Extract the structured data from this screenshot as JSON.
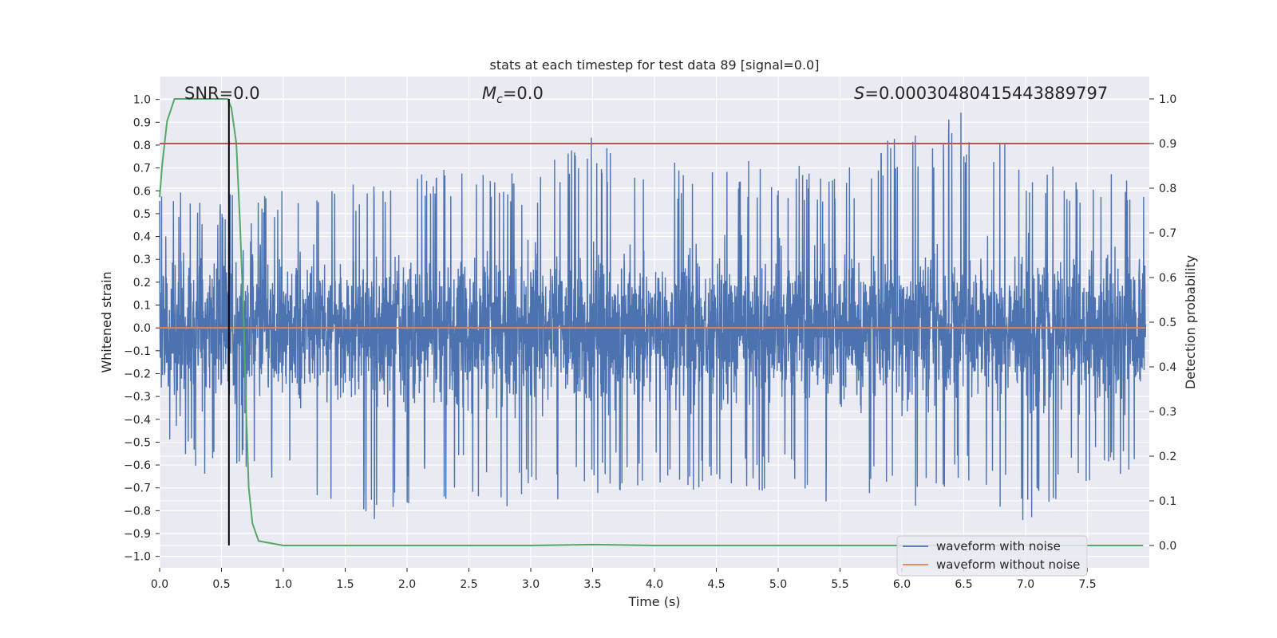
{
  "chart_data": {
    "type": "line",
    "title": "stats at each timestep for test data 89 [signal=0.0]",
    "xlabel": "Time (s)",
    "ylabel": "Whitened strain",
    "y2label": "Detection probability",
    "xlim": [
      0.0,
      8.0
    ],
    "ylim": [
      -1.05,
      1.1
    ],
    "y2lim": [
      -0.05,
      1.05
    ],
    "xticks": [
      0.0,
      0.5,
      1.0,
      1.5,
      2.0,
      2.5,
      3.0,
      3.5,
      4.0,
      4.5,
      5.0,
      5.5,
      6.0,
      6.5,
      7.0,
      7.5
    ],
    "xtick_labels": [
      "0.0",
      "0.5",
      "1.0",
      "1.5",
      "2.0",
      "2.5",
      "3.0",
      "3.5",
      "4.0",
      "4.5",
      "5.0",
      "5.5",
      "6.0",
      "6.5",
      "7.0",
      "7.5"
    ],
    "yticks": [
      -1.0,
      -0.9,
      -0.8,
      -0.7,
      -0.6,
      -0.5,
      -0.4,
      -0.3,
      -0.2,
      -0.1,
      0.0,
      0.1,
      0.2,
      0.3,
      0.4,
      0.5,
      0.6,
      0.7,
      0.8,
      0.9,
      1.0
    ],
    "ytick_labels": [
      "−1.0",
      "−0.9",
      "−0.8",
      "−0.7",
      "−0.6",
      "−0.5",
      "−0.4",
      "−0.3",
      "−0.2",
      "−0.1",
      "0.0",
      "0.1",
      "0.2",
      "0.3",
      "0.4",
      "0.5",
      "0.6",
      "0.7",
      "0.8",
      "0.9",
      "1.0"
    ],
    "y2ticks": [
      0.0,
      0.1,
      0.2,
      0.3,
      0.4,
      0.5,
      0.6,
      0.7,
      0.8,
      0.9,
      1.0
    ],
    "y2tick_labels": [
      "0.0",
      "0.1",
      "0.2",
      "0.3",
      "0.4",
      "0.5",
      "0.6",
      "0.7",
      "0.8",
      "0.9",
      "1.0"
    ],
    "annotations": {
      "snr": "SNR=0.0",
      "mc_symbol": "M",
      "mc_sub": "c",
      "mc_value": "=0.0",
      "s_symbol": "S",
      "s_value": "=0.00030480415443889797"
    },
    "threshold": 0.9,
    "marker_time": 0.56,
    "noise_envelope": {
      "t": [
        0.0,
        0.5,
        1.0,
        1.5,
        2.0,
        2.5,
        3.0,
        3.5,
        4.0,
        4.5,
        5.0,
        5.5,
        6.0,
        6.5,
        7.0,
        7.5,
        7.97
      ],
      "upper": [
        0.6,
        0.6,
        0.6,
        0.62,
        0.68,
        0.7,
        0.7,
        0.85,
        0.72,
        0.75,
        0.72,
        0.7,
        0.9,
        0.97,
        0.72,
        0.72,
        0.62
      ],
      "lower": [
        -0.55,
        -0.7,
        -0.72,
        -0.88,
        -0.8,
        -0.73,
        -0.82,
        -0.75,
        -0.68,
        -0.75,
        -0.72,
        -0.78,
        -0.8,
        -0.72,
        -0.9,
        -0.7,
        -0.62
      ]
    },
    "series": [
      {
        "name": "waveform with noise",
        "color": "#4c72b0",
        "kind": "noise",
        "samples": 4000,
        "seed": 89
      },
      {
        "name": "waveform without noise",
        "color": "#dd8452",
        "kind": "line",
        "axis": "left",
        "t": [
          0.0,
          7.97
        ],
        "y": [
          0.0,
          0.0
        ]
      },
      {
        "name": "detection probability",
        "color": "#55a868",
        "kind": "line",
        "axis": "right",
        "t": [
          0.0,
          0.02,
          0.06,
          0.12,
          0.2,
          0.3,
          0.4,
          0.5,
          0.55,
          0.58,
          0.62,
          0.65,
          0.68,
          0.7,
          0.72,
          0.75,
          0.8,
          1.0,
          2.0,
          3.0,
          3.5,
          4.0,
          5.0,
          6.0,
          7.0,
          7.95
        ],
        "y": [
          0.78,
          0.85,
          0.95,
          1.0,
          1.0,
          1.0,
          1.0,
          1.0,
          1.0,
          0.98,
          0.9,
          0.72,
          0.5,
          0.3,
          0.13,
          0.05,
          0.01,
          0.0,
          0.0,
          0.0,
          0.002,
          0.0,
          0.0,
          0.0,
          0.0,
          0.0
        ]
      },
      {
        "name": "threshold",
        "color": "#c44e52",
        "kind": "hline",
        "axis": "right",
        "y": 0.9
      }
    ],
    "legend": {
      "position": "lower-right",
      "entries": [
        {
          "label": "waveform with noise",
          "color": "#4c72b0"
        },
        {
          "label": "waveform without noise",
          "color": "#dd8452"
        }
      ]
    }
  }
}
